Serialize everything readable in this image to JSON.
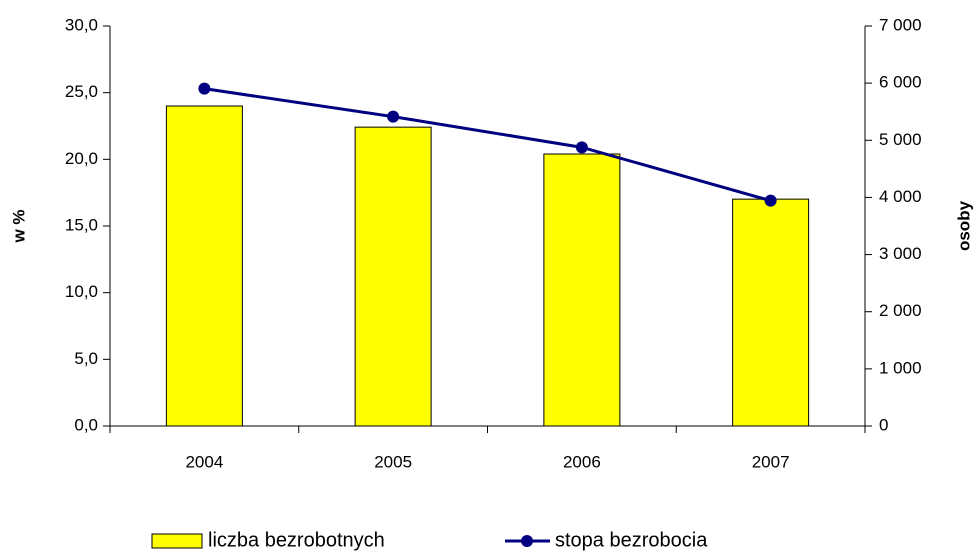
{
  "chart_data": {
    "type": "bar_line",
    "categories": [
      "2004",
      "2005",
      "2006",
      "2007"
    ],
    "series": [
      {
        "name": "liczba bezrobotnych",
        "type": "bar",
        "color": "#ffff00",
        "axis": "y2",
        "values": [
          5600,
          5230,
          4760,
          3970
        ]
      },
      {
        "name": "stopa bezrobocia",
        "type": "line",
        "color": "#000080",
        "axis": "y",
        "values": [
          25.3,
          23.2,
          20.9,
          16.9
        ]
      }
    ],
    "ylabel": "w %",
    "y2label": "osoby",
    "ylim": [
      0,
      30
    ],
    "yticks": [
      {
        "value": 0,
        "label": "0,0"
      },
      {
        "value": 5,
        "label": "5,0"
      },
      {
        "value": 10,
        "label": "10,0"
      },
      {
        "value": 15,
        "label": "15,0"
      },
      {
        "value": 20,
        "label": "20,0"
      },
      {
        "value": 25,
        "label": "25,0"
      },
      {
        "value": 30,
        "label": "30,0"
      }
    ],
    "y2lim": [
      0,
      7000
    ],
    "y2ticks": [
      0,
      {
        "value": 1000,
        "label": "1 000"
      },
      {
        "value": 2000,
        "label": "2 000"
      },
      {
        "value": 3000,
        "label": "3 000"
      },
      {
        "value": 4000,
        "label": "4 000"
      },
      {
        "value": 5000,
        "label": "5 000"
      },
      {
        "value": 6000,
        "label": "6 000"
      },
      {
        "value": 7000,
        "label": "7 000"
      }
    ],
    "legend": "bottom"
  }
}
